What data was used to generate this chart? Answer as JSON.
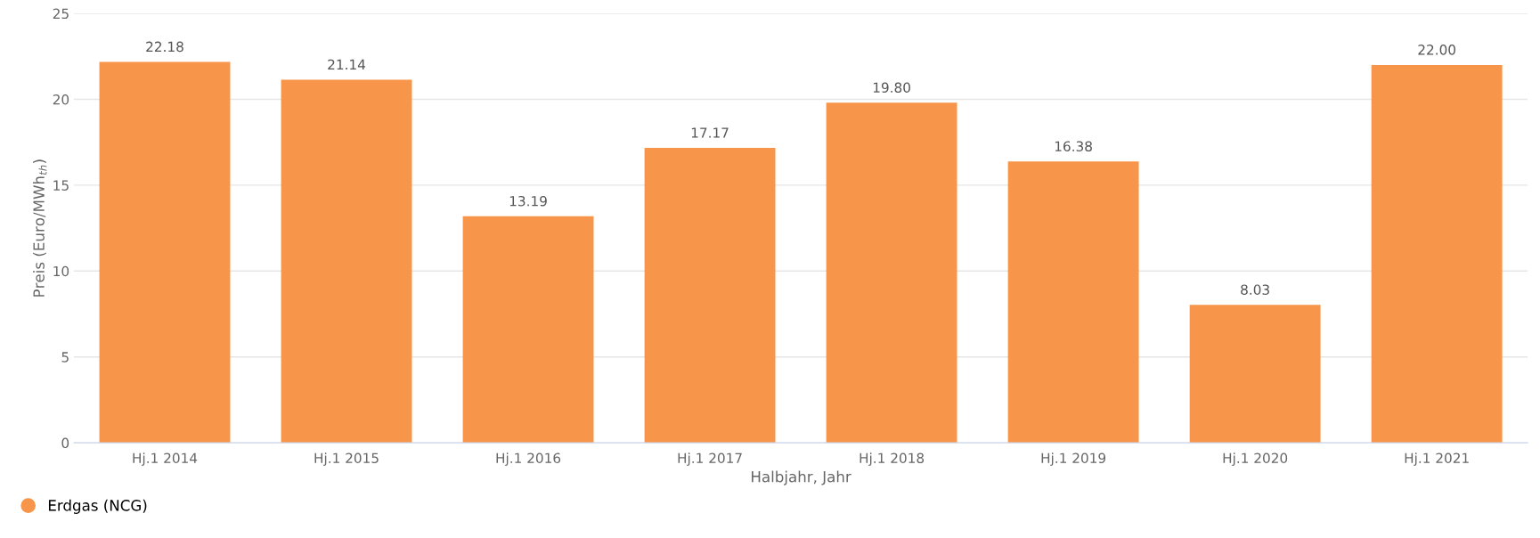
{
  "chart_data": {
    "type": "bar",
    "categories": [
      "Hj.1 2014",
      "Hj.1 2015",
      "Hj.1 2016",
      "Hj.1 2017",
      "Hj.1 2018",
      "Hj.1 2019",
      "Hj.1 2020",
      "Hj.1 2021"
    ],
    "series": [
      {
        "name": "Erdgas (NCG)",
        "color": "#f7964a",
        "values": [
          22.18,
          21.14,
          13.19,
          17.17,
          19.8,
          16.38,
          8.03,
          22.0
        ]
      }
    ],
    "value_labels": [
      "22.18",
      "21.14",
      "13.19",
      "17.17",
      "19.80",
      "16.38",
      "8.03",
      "22.00"
    ],
    "xlabel": "Halbjahr, Jahr",
    "ylabel": "Preis (Euro/MWh$_{th}$)",
    "ylim": [
      0,
      25
    ],
    "yticks": [
      0,
      5,
      10,
      15,
      20,
      25
    ],
    "grid": "y",
    "legend": "bottom left"
  }
}
